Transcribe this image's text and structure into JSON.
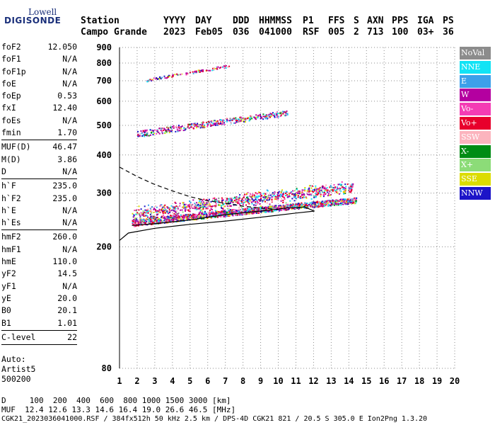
{
  "logo": {
    "line1": "Lowell",
    "line2": "DIGISONDE"
  },
  "header": {
    "station_label": "Station",
    "station_value": "Campo Grande",
    "columns": [
      {
        "label": "YYYY",
        "value": "2023"
      },
      {
        "label": "DAY",
        "value": "Feb05"
      },
      {
        "label": "DDD",
        "value": "036"
      },
      {
        "label": "HHMMSS",
        "value": "041000"
      },
      {
        "label": "P1",
        "value": "RSF"
      },
      {
        "label": "FFS",
        "value": "005"
      },
      {
        "label": "S",
        "value": "2"
      },
      {
        "label": "AXN",
        "value": "713"
      },
      {
        "label": "PPS",
        "value": "100"
      },
      {
        "label": "IGA",
        "value": "03+"
      },
      {
        "label": "PS",
        "value": "36"
      }
    ]
  },
  "parameters": [
    {
      "name": "foF2",
      "value": "12.050"
    },
    {
      "name": "foF1",
      "value": "N/A"
    },
    {
      "name": "foF1p",
      "value": "N/A"
    },
    {
      "name": "foE",
      "value": "N/A"
    },
    {
      "name": "foEp",
      "value": "0.53"
    },
    {
      "name": "fxI",
      "value": "12.40"
    },
    {
      "name": "foEs",
      "value": "N/A"
    },
    {
      "name": "fmin",
      "value": "1.70"
    },
    {
      "name": "MUF(D)",
      "value": "46.47"
    },
    {
      "name": "M(D)",
      "value": "3.86"
    },
    {
      "name": "D",
      "value": "N/A"
    },
    {
      "name": "h`F",
      "value": "235.0"
    },
    {
      "name": "h`F2",
      "value": "235.0"
    },
    {
      "name": "h`E",
      "value": "N/A"
    },
    {
      "name": "h`Es",
      "value": "N/A"
    },
    {
      "name": "hmF2",
      "value": "260.0"
    },
    {
      "name": "hmF1",
      "value": "N/A"
    },
    {
      "name": "hmE",
      "value": "110.0"
    },
    {
      "name": "yF2",
      "value": "14.5"
    },
    {
      "name": "yF1",
      "value": "N/A"
    },
    {
      "name": "yE",
      "value": "20.0"
    },
    {
      "name": "B0",
      "value": "20.1"
    },
    {
      "name": "B1",
      "value": "1.01"
    },
    {
      "name": "C-level",
      "value": "22"
    }
  ],
  "auto": {
    "line1": "Auto:",
    "line2": "Artist5",
    "line3": "500200"
  },
  "legend": [
    {
      "label": "NoVal",
      "color": "#8c8c8c"
    },
    {
      "label": "NNE",
      "color": "#12e3f5"
    },
    {
      "label": "E",
      "color": "#3ca0ea"
    },
    {
      "label": "W",
      "color": "#b400a0"
    },
    {
      "label": "Vo-",
      "color": "#f43cb4"
    },
    {
      "label": "Vo+",
      "color": "#e8002c"
    },
    {
      "label": "SSW",
      "color": "#fcb4be"
    },
    {
      "label": "X-",
      "color": "#008c14"
    },
    {
      "label": "X+",
      "color": "#8cdc78"
    },
    {
      "label": "SSE",
      "color": "#dcdc00"
    },
    {
      "label": "NNW",
      "color": "#1c14c8"
    }
  ],
  "footer": {
    "dist_label": "D",
    "dist_values": "100  200  400  600  800 1000 1500 3000 [km]",
    "muf_label": "MUF",
    "muf_values": "12.4 12.6 13.3 14.6 16.4 19.0 26.6 46.5 [MHz]",
    "info": "CGK21_2023036041000.RSF / 384fx512h 50 kHz 2.5 km / DPS-4D CGK21 821 / 20.5 S 305.0 E Ion2Png 1.3.20"
  },
  "chart_data": {
    "type": "scatter",
    "title": "",
    "xlabel": "",
    "ylabel": "",
    "xlim": [
      1,
      20
    ],
    "ylim": [
      80,
      900
    ],
    "x_ticks": [
      1,
      2,
      3,
      4,
      5,
      6,
      7,
      8,
      9,
      10,
      11,
      12,
      13,
      14,
      15,
      16,
      17,
      18,
      19,
      20
    ],
    "y_ticks": [
      80,
      200,
      300,
      400,
      500,
      600,
      700,
      800,
      900
    ],
    "y_scale": "log",
    "grid": "dotted",
    "legend_position": "right",
    "echo_clusters": [
      {
        "name": "F-layer first hop",
        "f_range": [
          1.7,
          14.4
        ],
        "h_start": 240,
        "h_end": 285
      },
      {
        "name": "spread F",
        "f_range": [
          1.7,
          14.2
        ],
        "h_start": 255,
        "h_end": 315
      },
      {
        "name": "second hop",
        "f_range": [
          2.0,
          10.5
        ],
        "h_start": 470,
        "h_end": 550
      },
      {
        "name": "third hop",
        "f_range": [
          2.5,
          7.2
        ],
        "h_start": 705,
        "h_end": 785
      }
    ],
    "profile_curves": [
      {
        "name": "virtual height model",
        "points": [
          [
            1.0,
            210
          ],
          [
            1.5,
            222
          ],
          [
            3,
            230
          ],
          [
            5,
            237
          ],
          [
            7,
            243
          ],
          [
            9,
            250
          ],
          [
            11,
            258
          ],
          [
            12.05,
            262
          ]
        ]
      },
      {
        "name": "computed trace",
        "points": [
          [
            1.7,
            235
          ],
          [
            3,
            238
          ],
          [
            5,
            245
          ],
          [
            7,
            255
          ],
          [
            9,
            262
          ],
          [
            10.5,
            268
          ],
          [
            11.5,
            270
          ],
          [
            12.05,
            262
          ]
        ]
      },
      {
        "name": "profile (dashed)",
        "points": [
          [
            1.0,
            365
          ],
          [
            2,
            340
          ],
          [
            3,
            320
          ],
          [
            4,
            305
          ],
          [
            5,
            292
          ],
          [
            6,
            283
          ],
          [
            7,
            278
          ],
          [
            8,
            272
          ],
          [
            9,
            268
          ],
          [
            10,
            265
          ]
        ]
      }
    ]
  }
}
